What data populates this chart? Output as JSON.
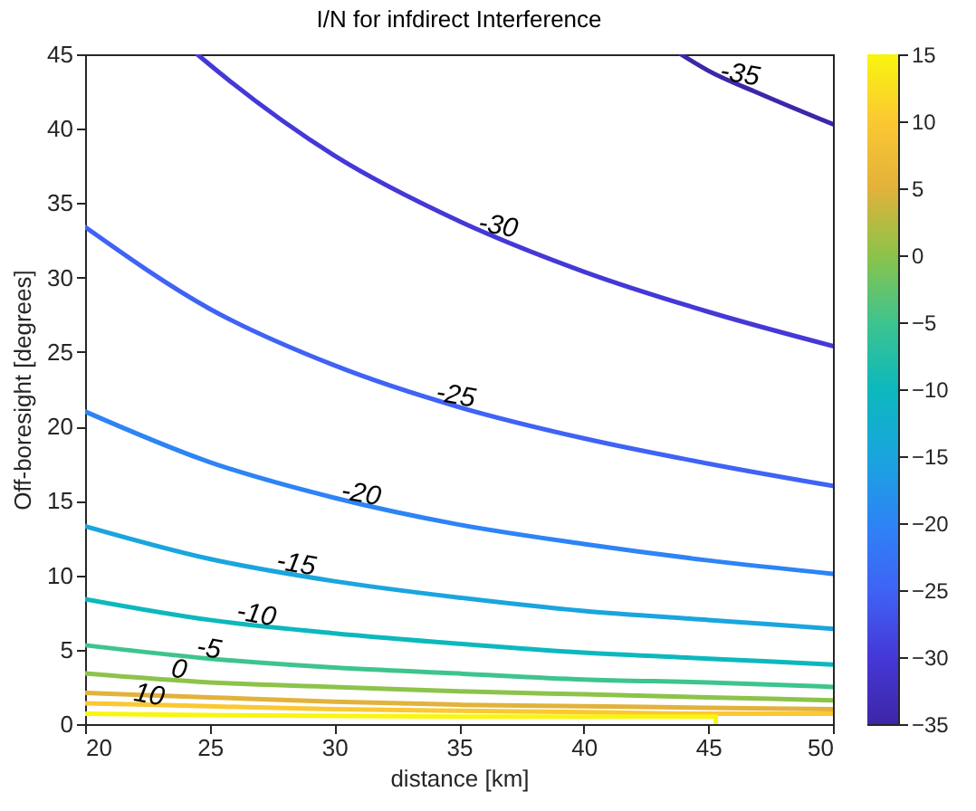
{
  "chart_data": {
    "type": "line",
    "title": "I/N for infdirect Interference",
    "xlabel": "distance [km]",
    "ylabel": "Off-boresight [degrees]",
    "xlim": [
      20,
      50
    ],
    "xticks": [
      20,
      25,
      30,
      35,
      40,
      45,
      50
    ],
    "ylim": [
      0,
      45
    ],
    "yticks": [
      0,
      5,
      10,
      15,
      20,
      25,
      30,
      35,
      40,
      45
    ],
    "grid": false,
    "clim": [
      -35,
      15
    ],
    "cticks": [
      -35,
      -30,
      -25,
      -20,
      -15,
      -10,
      -5,
      0,
      5,
      10,
      15
    ],
    "series": [
      {
        "color": "#3e26a8",
        "x": [
          43.9,
          45,
          47,
          50
        ],
        "values": [
          45,
          43.9,
          42.4,
          40.3
        ]
      },
      {
        "color": "#4538d7",
        "x": [
          24.5,
          25,
          30,
          35,
          40,
          45,
          50
        ],
        "values": [
          45,
          44.3,
          38.2,
          33.8,
          30.4,
          27.7,
          25.4
        ]
      },
      {
        "color": "#3f63f5",
        "x": [
          20,
          25,
          30,
          35,
          40,
          45,
          50
        ],
        "values": [
          33.4,
          27.9,
          24.1,
          21.3,
          19.2,
          17.5,
          16.0
        ]
      },
      {
        "color": "#2d84f5",
        "x": [
          20,
          25,
          30,
          35,
          40,
          45,
          50
        ],
        "values": [
          21.0,
          17.6,
          15.2,
          13.4,
          12.1,
          11.0,
          10.1
        ]
      },
      {
        "color": "#1aa5de",
        "x": [
          20,
          25,
          30,
          35,
          40,
          45,
          50
        ],
        "values": [
          13.3,
          11.1,
          9.6,
          8.5,
          7.6,
          7.0,
          6.4
        ]
      },
      {
        "color": "#0cb8bd",
        "x": [
          20,
          25,
          30,
          35,
          40,
          45,
          50
        ],
        "values": [
          8.4,
          7.0,
          6.1,
          5.4,
          4.8,
          4.4,
          4.0
        ]
      },
      {
        "color": "#3ec48e",
        "x": [
          20,
          25,
          30,
          35,
          40,
          45,
          50
        ],
        "values": [
          5.3,
          4.4,
          3.8,
          3.4,
          3.0,
          2.8,
          2.5
        ]
      },
      {
        "color": "#8cc34a",
        "x": [
          20,
          25,
          30,
          35,
          40,
          45,
          50
        ],
        "values": [
          3.4,
          2.8,
          2.5,
          2.2,
          2.0,
          1.8,
          1.6
        ]
      },
      {
        "color": "#e2b23a",
        "x": [
          20,
          25,
          30,
          35,
          40,
          45,
          50
        ],
        "values": [
          2.1,
          1.8,
          1.5,
          1.3,
          1.2,
          1.1,
          1.0
        ]
      },
      {
        "color": "#fbc832",
        "x": [
          20,
          25,
          30,
          35,
          40,
          45,
          50
        ],
        "values": [
          1.4,
          1.2,
          1.0,
          0.9,
          0.8,
          0.7,
          0.7
        ]
      },
      {
        "color": "#f9f50f",
        "x": [
          20,
          25.5,
          35,
          45.3,
          45.3
        ],
        "values": [
          0.7,
          0.6,
          0.5,
          0.5,
          0
        ]
      }
    ],
    "annotations": [
      {
        "text": "-35",
        "x": 46.2,
        "y": 43.0
      },
      {
        "text": "-30",
        "x": 36.5,
        "y": 32.8
      },
      {
        "text": "-25",
        "x": 34.8,
        "y": 21.4
      },
      {
        "text": "-20",
        "x": 31.0,
        "y": 14.8
      },
      {
        "text": "-15",
        "x": 28.4,
        "y": 10.1
      },
      {
        "text": "-10",
        "x": 26.8,
        "y": 6.7
      },
      {
        "text": "-5",
        "x": 24.9,
        "y": 4.4
      },
      {
        "text": "0",
        "x": 23.7,
        "y": 3.0
      },
      {
        "text": "10",
        "x": 22.5,
        "y": 1.3
      }
    ]
  }
}
